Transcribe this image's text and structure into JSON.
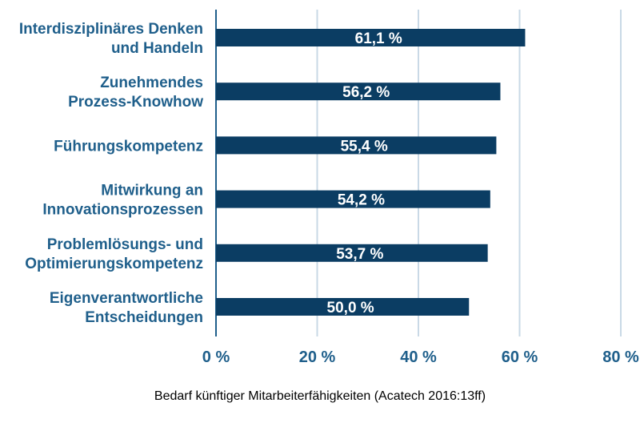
{
  "chart_data": {
    "type": "bar",
    "orientation": "horizontal",
    "categories": [
      [
        "Interdisziplinäres Denken",
        "und Handeln"
      ],
      [
        "Zunehmendes",
        "Prozess-Knowhow"
      ],
      [
        "Führungskompetenz"
      ],
      [
        "Mitwirkung an",
        "Innovationsprozessen"
      ],
      [
        "Problemlösungs- und",
        "Optimierungskompetenz"
      ],
      [
        "Eigenverantwortliche",
        "Entscheidungen"
      ]
    ],
    "values": [
      61.1,
      56.2,
      55.4,
      54.2,
      53.7,
      50.0
    ],
    "value_labels": [
      "61,1 %",
      "56,2 %",
      "55,4 %",
      "54,2 %",
      "53,7 %",
      "50,0 %"
    ],
    "xlim": [
      0,
      80
    ],
    "xticks": [
      0,
      20,
      40,
      60,
      80
    ],
    "xtick_labels": [
      "0 %",
      "20 %",
      "40 %",
      "60 %",
      "80 %"
    ],
    "grid": true,
    "legend": "none"
  },
  "caption": "Bedarf künftiger Mitarbeiterfähigkeiten (Acatech 2016:13ff)",
  "colors": {
    "bar": "#0b3d63",
    "label": "#1f5f8b",
    "grid": "#c9d9e6",
    "axis": "#1f5f8b"
  }
}
